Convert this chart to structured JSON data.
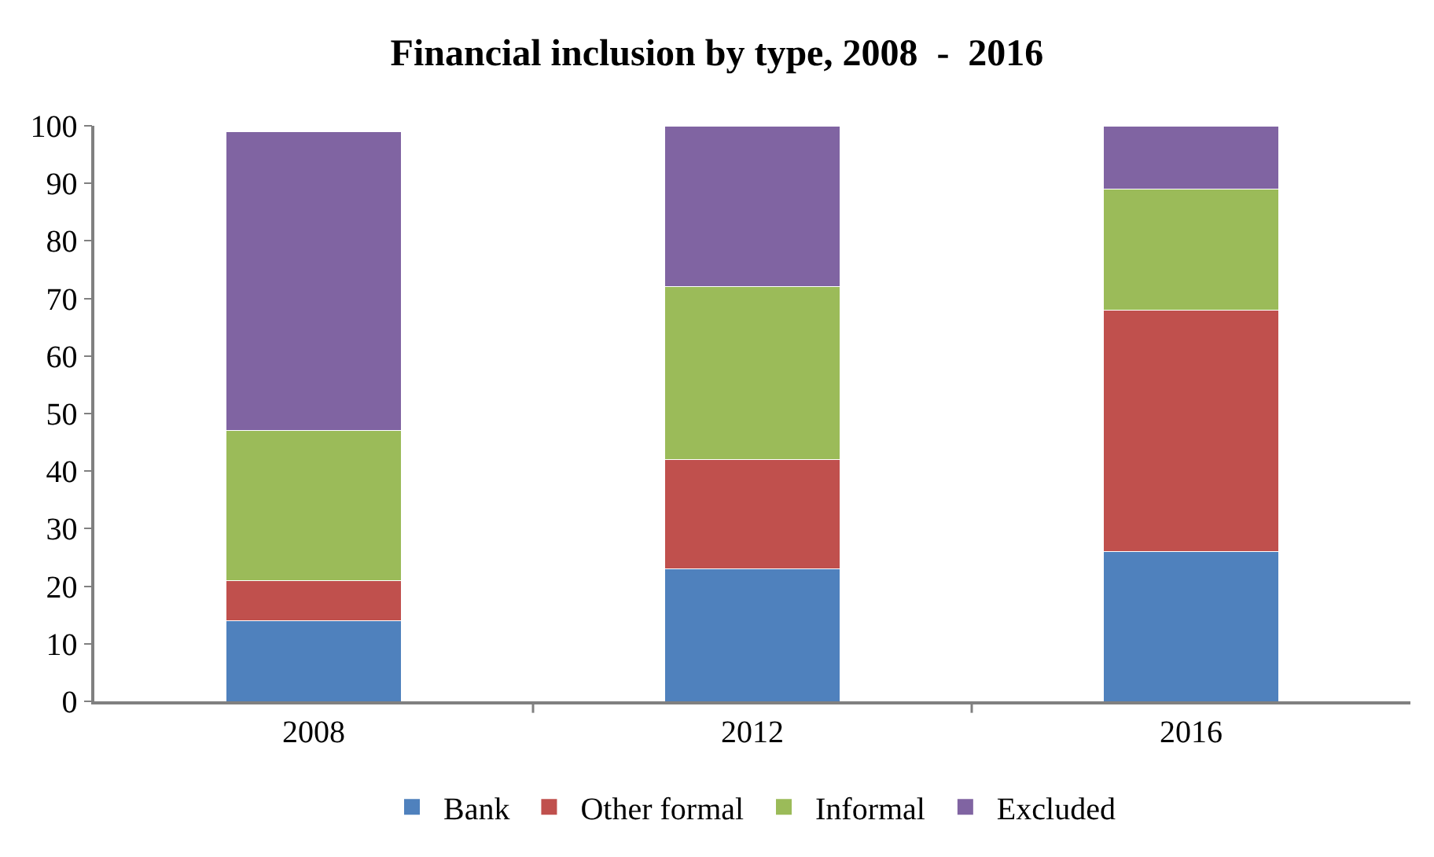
{
  "chart_data": {
    "type": "bar",
    "title": "Financial inclusion by type, 2008  -  2016",
    "categories": [
      "2008",
      "2012",
      "2016"
    ],
    "stacked": true,
    "series": [
      {
        "name": "Bank",
        "color": "#4f81bd",
        "values": [
          14,
          23,
          26
        ]
      },
      {
        "name": "Other formal",
        "color": "#c0504d",
        "values": [
          7,
          19,
          42
        ]
      },
      {
        "name": "Informal",
        "color": "#9bbb59",
        "values": [
          26,
          30,
          21
        ]
      },
      {
        "name": "Excluded",
        "color": "#8064a2",
        "values": [
          52,
          28,
          11
        ]
      }
    ],
    "ylim": [
      0,
      100
    ],
    "yticks": [
      0,
      10,
      20,
      30,
      40,
      50,
      60,
      70,
      80,
      90,
      100
    ],
    "grid": false,
    "legend": "bottom"
  }
}
